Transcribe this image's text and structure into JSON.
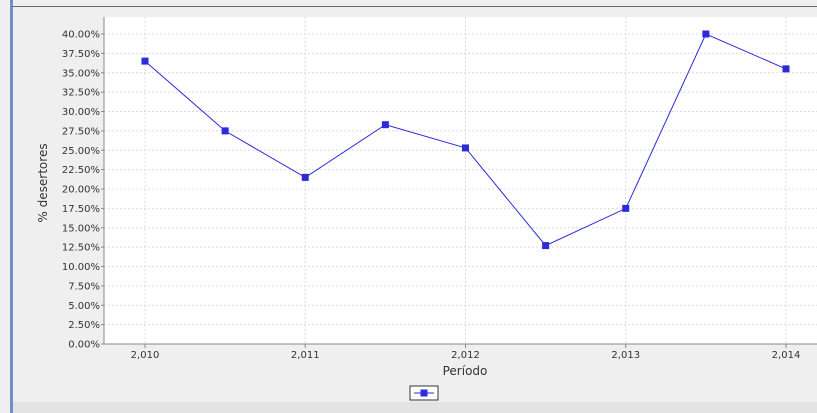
{
  "chart_data": {
    "type": "line",
    "title": "",
    "xlabel": "Período",
    "ylabel": "% desertores",
    "ylim": [
      0,
      40
    ],
    "y_ticks": [
      "0.00%",
      "2.50%",
      "5.00%",
      "7.50%",
      "10.00%",
      "12.50%",
      "15.00%",
      "17.50%",
      "20.00%",
      "22.50%",
      "25.00%",
      "27.50%",
      "30.00%",
      "32.50%",
      "35.00%",
      "37.50%",
      "40.00%"
    ],
    "x_ticks": [
      "2,010",
      "2,011",
      "2,012",
      "2,013",
      "2,014"
    ],
    "xlim": [
      2010,
      2014
    ],
    "grid": true,
    "legend": "bottom-center",
    "series": [
      {
        "color": "#2b2bd9",
        "marker": "square",
        "x": [
          2010,
          2010.5,
          2011,
          2011.5,
          2012,
          2012.5,
          2013,
          2013.5,
          2014
        ],
        "values": [
          36.5,
          27.5,
          21.5,
          28.3,
          25.3,
          12.7,
          17.5,
          40.0,
          35.5
        ]
      }
    ]
  }
}
